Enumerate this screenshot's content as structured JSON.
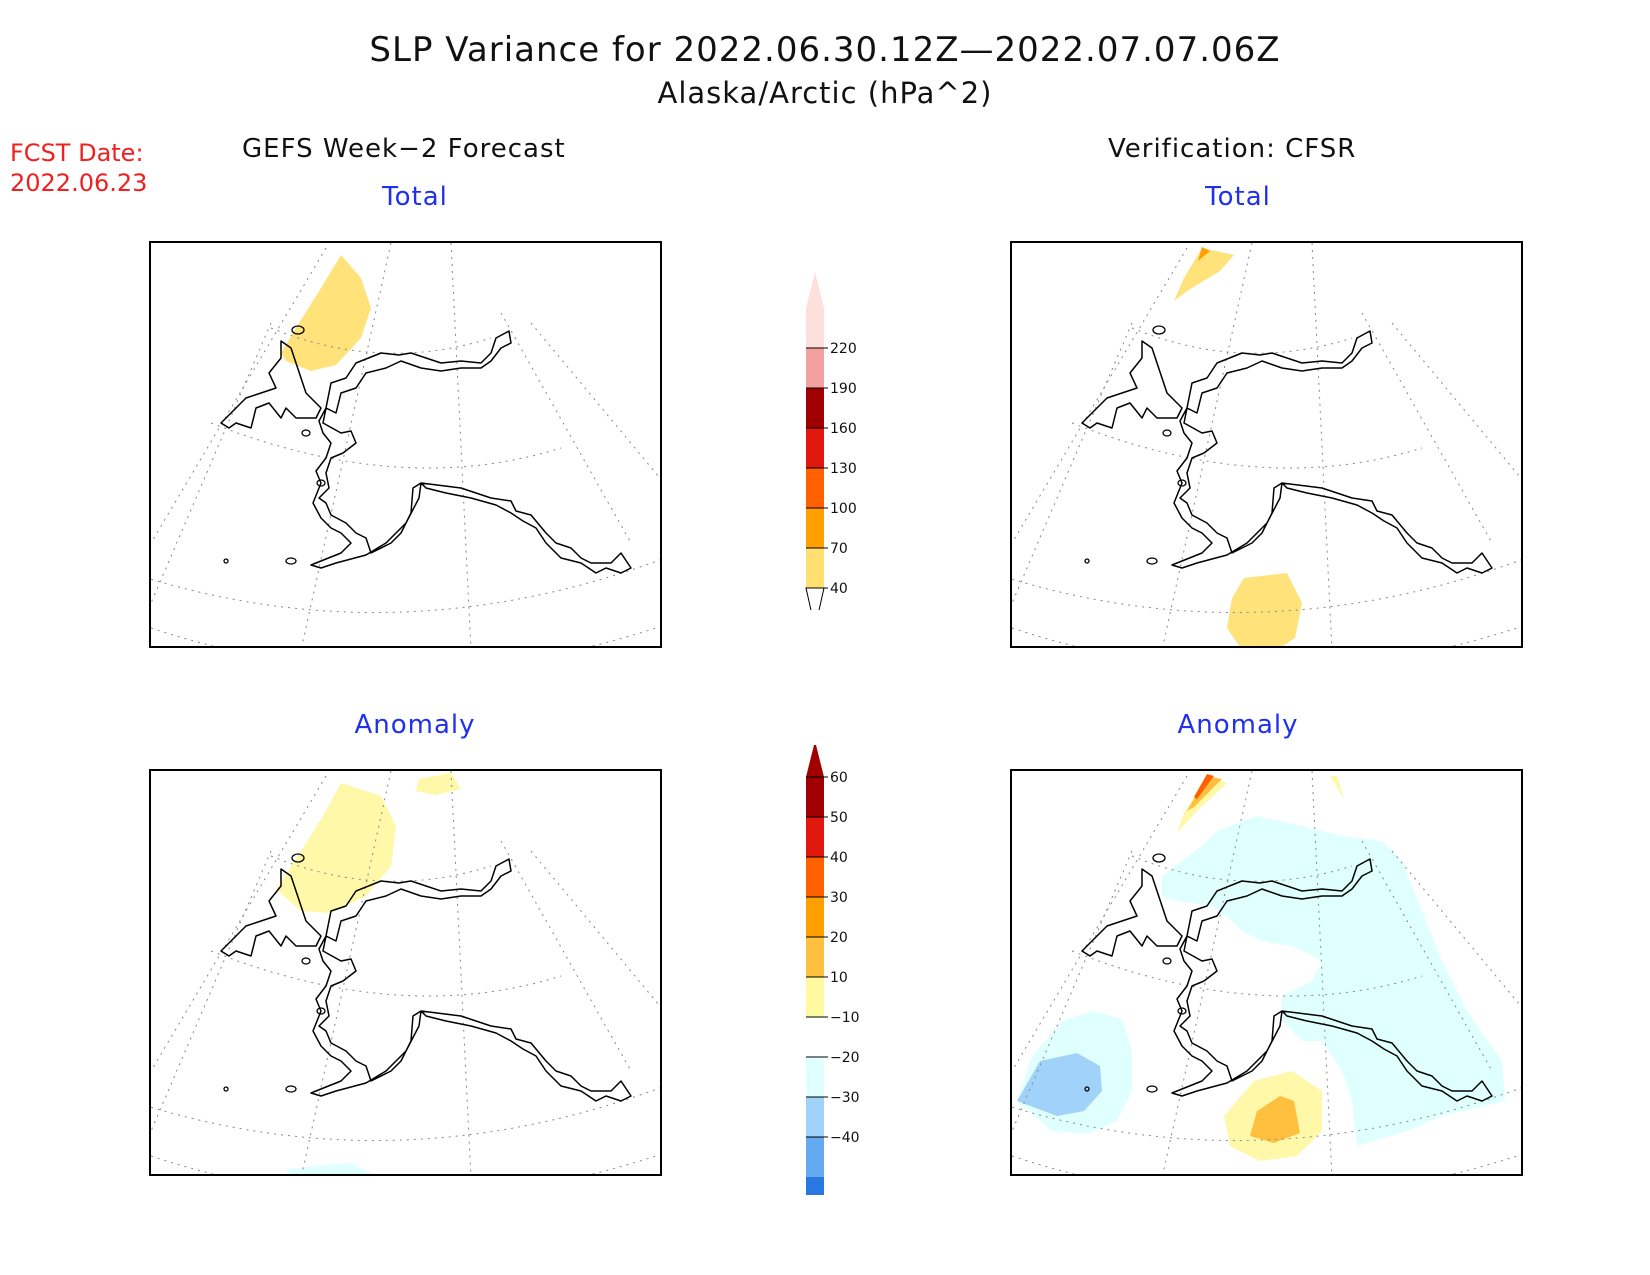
{
  "header": {
    "title": "SLP Variance for 2022.06.30.12Z—2022.07.07.06Z",
    "subtitle": "Alaska/Arctic (hPa^2)"
  },
  "forecast_date": {
    "label": "FCST Date:",
    "value": "2022.06.23"
  },
  "columns": {
    "left": "GEFS Week−2 Forecast",
    "right": "Verification: CFSR"
  },
  "panels": {
    "fcst_total": "Total",
    "verif_total": "Total",
    "fcst_anomaly": "Anomaly",
    "verif_anomaly": "Anomaly"
  },
  "colorbars": {
    "total": {
      "labels": [
        "220",
        "190",
        "160",
        "130",
        "100",
        "70",
        "40"
      ],
      "colors": [
        "#fde0dc",
        "#f4a0a0",
        "#a00000",
        "#e01810",
        "#ff6000",
        "#ffa000",
        "#ffe070"
      ]
    },
    "anomaly": {
      "labels": [
        "60",
        "50",
        "40",
        "30",
        "20",
        "10",
        "−10",
        "−20",
        "−30",
        "−40"
      ],
      "colors": [
        "#a00000",
        "#e01810",
        "#ff6000",
        "#ffa000",
        "#ffc040",
        "#fffaa0",
        "#ffffff",
        "#e0ffff",
        "#a0d2fa",
        "#64aaf0",
        "#2878e0",
        "#1050c0"
      ]
    }
  },
  "colors": {
    "title_text": "#111111",
    "fcst_date": "#f02020",
    "panel_title": "#2030ee"
  }
}
